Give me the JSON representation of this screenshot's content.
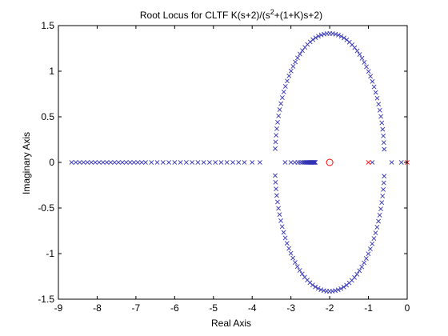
{
  "chart_data": {
    "type": "scatter",
    "title": {
      "prefix": "Root Locus for CLTF K(s+2)/(s",
      "sup": "2",
      "suffix": "+(1+K)s+2)"
    },
    "xlabel": "Real Axis",
    "ylabel": "Imaginary Axis",
    "xlim": [
      -9,
      0
    ],
    "ylim": [
      -1.5,
      1.5
    ],
    "xticks": [
      -9,
      -8,
      -7,
      -6,
      -5,
      -4,
      -3,
      -2,
      -1,
      0
    ],
    "yticks": [
      -1.5,
      -1,
      -0.5,
      0,
      0.5,
      1,
      1.5
    ],
    "xtick_labels": [
      "-9",
      "-8",
      "-7",
      "-6",
      "-5",
      "-4",
      "-3",
      "-2",
      "-1",
      "0"
    ],
    "ytick_labels": [
      "-1.5",
      "-1",
      "-0.5",
      "0",
      "0.5",
      "1",
      "1.5"
    ],
    "grid": false,
    "colors": {
      "locus": "#3333b3",
      "open_loop_poles": "#ff0000",
      "open_loop_zero": "#ff0000",
      "axes": "#000000"
    },
    "series": [
      {
        "marker": "x",
        "color": "#3333b3",
        "circle_center": [
          -2,
          0
        ],
        "circle_radius": 1.414,
        "x": [
          -8.66,
          -8.55,
          -8.45,
          -8.35,
          -8.25,
          -8.15,
          -8.05,
          -7.95,
          -7.85,
          -7.75,
          -7.65,
          -7.55,
          -7.45,
          -7.35,
          -7.25,
          -7.15,
          -7.05,
          -6.95,
          -6.85,
          -6.75,
          -6.6,
          -6.45,
          -6.3,
          -6.15,
          -6.0,
          -5.85,
          -5.7,
          -5.55,
          -5.4,
          -5.25,
          -5.1,
          -4.95,
          -4.8,
          -4.65,
          -4.5,
          -4.35,
          -4.2,
          -4.0,
          -3.8,
          -3.15,
          -3.0,
          -2.9,
          -2.82,
          -2.76,
          -2.71,
          -2.67,
          -2.64,
          -2.61,
          -2.59,
          -2.57,
          -2.55,
          -2.53,
          -2.51,
          -2.49,
          -2.48,
          -2.47,
          -2.46,
          -2.45,
          -2.44,
          -2.43,
          -2.42,
          -2.41,
          -2.4,
          -2.39,
          -2.38,
          -2.37,
          -0.9,
          -0.4,
          -0.15
        ],
        "y": [
          0,
          0,
          0,
          0,
          0,
          0,
          0,
          0,
          0,
          0,
          0,
          0,
          0,
          0,
          0,
          0,
          0,
          0,
          0,
          0,
          0,
          0,
          0,
          0,
          0,
          0,
          0,
          0,
          0,
          0,
          0,
          0,
          0,
          0,
          0,
          0,
          0,
          0,
          0,
          0,
          0,
          0,
          0,
          0,
          0,
          0,
          0,
          0,
          0,
          0,
          0,
          0,
          0,
          0,
          0,
          0,
          0,
          0,
          0,
          0,
          0,
          0,
          0,
          0,
          0,
          0,
          0,
          0,
          0
        ]
      }
    ],
    "open_loop_poles": {
      "marker": "x",
      "color": "#ff0000",
      "x": [
        -1,
        0
      ],
      "y": [
        0,
        0
      ]
    },
    "open_loop_zero": {
      "marker": "o",
      "color": "#ff0000",
      "x": [
        -2
      ],
      "y": [
        0
      ]
    }
  }
}
